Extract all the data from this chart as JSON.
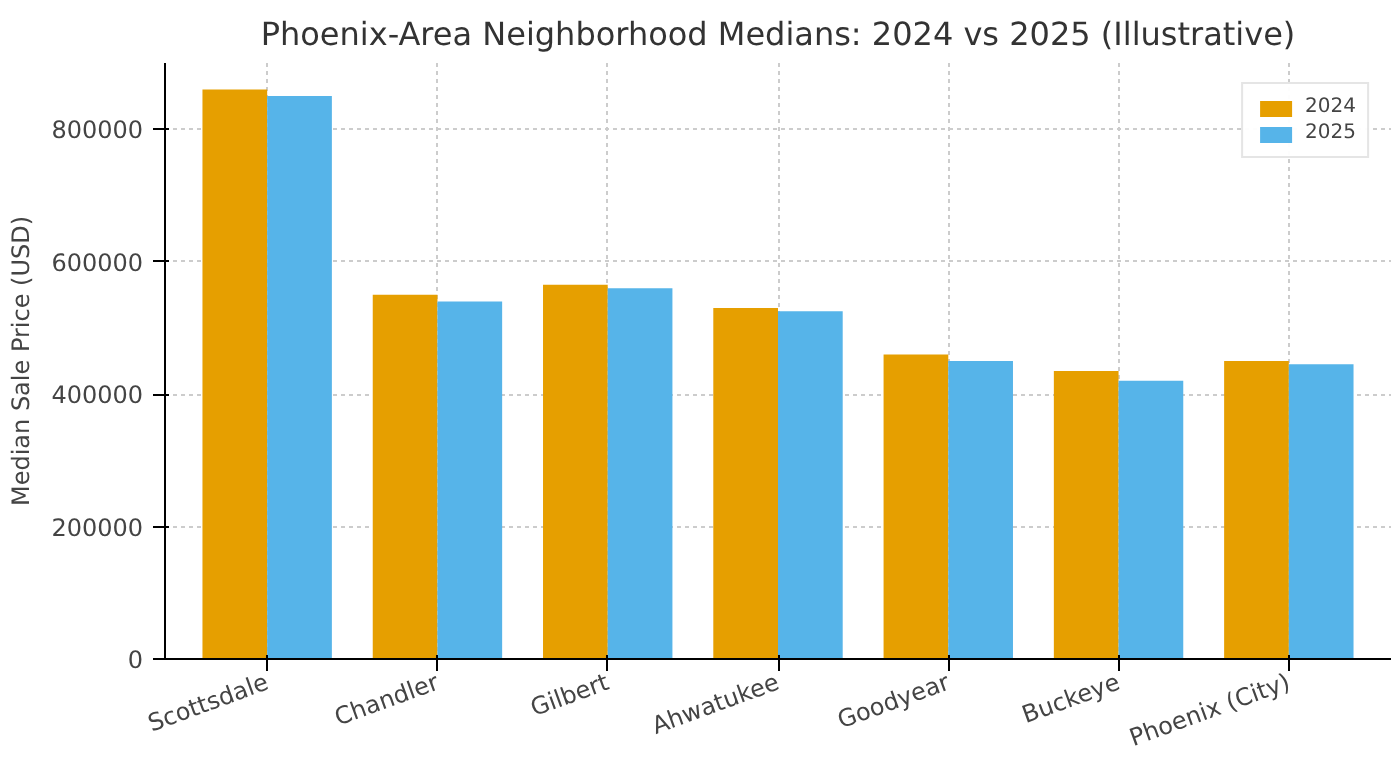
{
  "chart_data": {
    "type": "bar",
    "title": "Phoenix-Area Neighborhood Medians: 2024 vs 2025 (Illustrative)",
    "ylabel": "Median Sale Price (USD)",
    "categories": [
      "Scottsdale",
      "Chandler",
      "Gilbert",
      "Ahwatukee",
      "Goodyear",
      "Buckeye",
      "Phoenix (City)"
    ],
    "series": [
      {
        "name": "2024",
        "color": "#e69f00",
        "values": [
          860000,
          550000,
          565000,
          530000,
          460000,
          435000,
          450000
        ]
      },
      {
        "name": "2025",
        "color": "#56b4e9",
        "values": [
          850000,
          540000,
          560000,
          525000,
          450000,
          420000,
          445000
        ]
      }
    ],
    "ylim": [
      0,
      900000
    ],
    "yticks": [
      0,
      200000,
      400000,
      600000,
      800000
    ],
    "grid": true,
    "legend": "top right"
  }
}
